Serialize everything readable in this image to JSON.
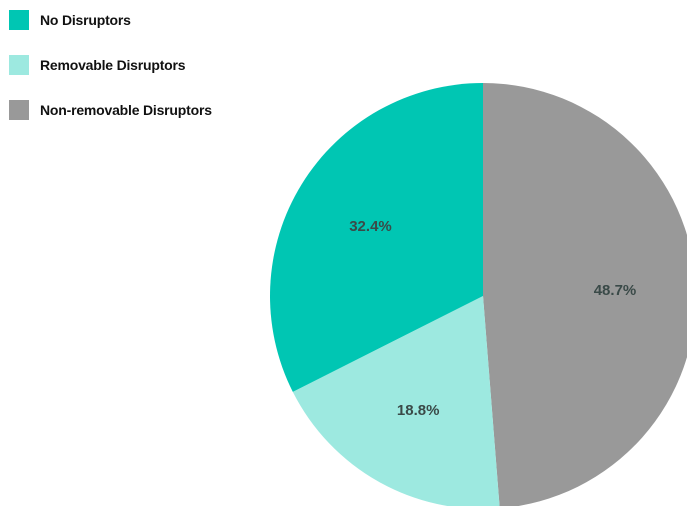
{
  "chart_data": {
    "type": "pie",
    "title": "",
    "legend_placement": "top-left",
    "start_angle_deg": 0,
    "direction": "clockwise",
    "slices": [
      {
        "name": "Non-removable Disruptors",
        "value": 48.7,
        "label": "48.7%",
        "color": "#999999"
      },
      {
        "name": "Removable Disruptors",
        "value": 18.8,
        "label": "18.8%",
        "color": "#9de9e0"
      },
      {
        "name": "No Disruptors",
        "value": 32.4,
        "label": "32.4%",
        "color": "#00c6b3"
      }
    ],
    "legend": [
      {
        "name": "No Disruptors",
        "color": "#00c6b3"
      },
      {
        "name": "Removable Disruptors",
        "color": "#9de9e0"
      },
      {
        "name": "Non-removable Disruptors",
        "color": "#999999"
      }
    ]
  }
}
